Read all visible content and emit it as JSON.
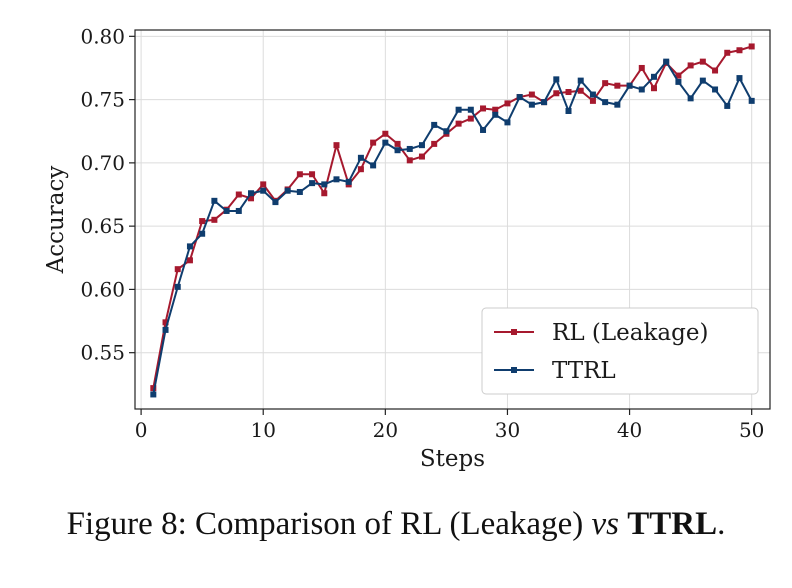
{
  "caption": {
    "prefix": "Figure 8: Comparison of RL (Leakage) ",
    "vs": "vs",
    "space": " ",
    "bold": "TTRL",
    "period": "."
  },
  "chart_data": {
    "type": "line",
    "title": "",
    "xlabel": "Steps",
    "ylabel": "Accuracy",
    "xlim": [
      -0.5,
      51.5
    ],
    "ylim": [
      0.5055,
      0.805
    ],
    "xticks": [
      0,
      10,
      20,
      30,
      40,
      50
    ],
    "yticks": [
      0.55,
      0.6,
      0.65,
      0.7,
      0.75,
      0.8
    ],
    "ytick_labels": [
      "0.55",
      "0.60",
      "0.65",
      "0.70",
      "0.75",
      "0.80"
    ],
    "grid": true,
    "legend_position": "lower-right",
    "x": [
      1,
      2,
      3,
      4,
      5,
      6,
      7,
      8,
      9,
      10,
      11,
      12,
      13,
      14,
      15,
      16,
      17,
      18,
      19,
      20,
      21,
      22,
      23,
      24,
      25,
      26,
      27,
      28,
      29,
      30,
      31,
      32,
      33,
      34,
      35,
      36,
      37,
      38,
      39,
      40,
      41,
      42,
      43,
      44,
      45,
      46,
      47,
      48,
      49,
      50
    ],
    "series": [
      {
        "name": "RL (Leakage)",
        "color": "#a6192e",
        "marker": "square",
        "values": [
          0.522,
          0.574,
          0.616,
          0.623,
          0.654,
          0.655,
          0.663,
          0.675,
          0.672,
          0.683,
          0.67,
          0.679,
          0.691,
          0.691,
          0.676,
          0.714,
          0.683,
          0.695,
          0.716,
          0.723,
          0.715,
          0.702,
          0.705,
          0.715,
          0.723,
          0.731,
          0.735,
          0.743,
          0.742,
          0.747,
          0.752,
          0.754,
          0.748,
          0.755,
          0.756,
          0.757,
          0.749,
          0.763,
          0.761,
          0.761,
          0.775,
          0.759,
          0.779,
          0.769,
          0.777,
          0.78,
          0.773,
          0.787,
          0.789,
          0.792
        ]
      },
      {
        "name": "TTRL",
        "color": "#0f3d6e",
        "marker": "square",
        "values": [
          0.517,
          0.568,
          0.602,
          0.634,
          0.644,
          0.67,
          0.662,
          0.662,
          0.676,
          0.678,
          0.669,
          0.678,
          0.677,
          0.684,
          0.683,
          0.687,
          0.685,
          0.704,
          0.698,
          0.716,
          0.71,
          0.711,
          0.714,
          0.73,
          0.725,
          0.742,
          0.742,
          0.726,
          0.738,
          0.732,
          0.752,
          0.746,
          0.748,
          0.766,
          0.741,
          0.765,
          0.754,
          0.748,
          0.746,
          0.761,
          0.758,
          0.768,
          0.78,
          0.764,
          0.751,
          0.765,
          0.758,
          0.745,
          0.767,
          0.749
        ]
      }
    ]
  }
}
